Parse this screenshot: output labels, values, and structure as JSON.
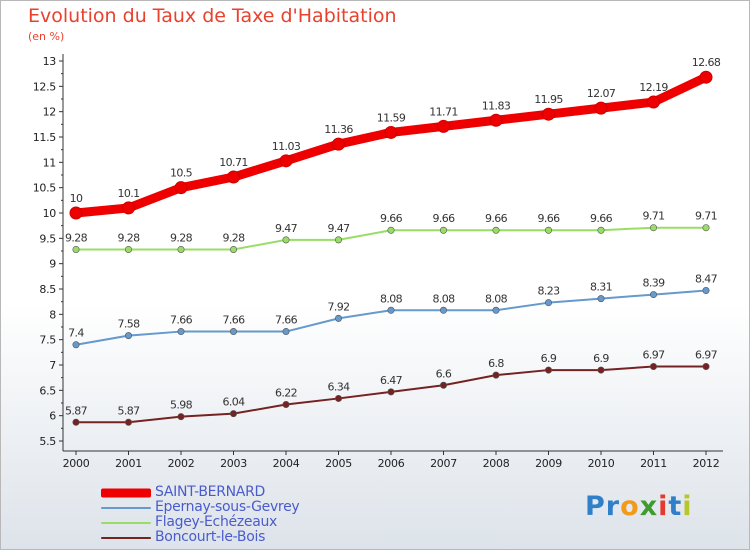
{
  "chart_data": {
    "type": "line",
    "title": "Evolution du Taux de Taxe d'Habitation",
    "subtitle": "(en %)",
    "x": [
      "2000",
      "2001",
      "2002",
      "2003",
      "2004",
      "2005",
      "2006",
      "2007",
      "2008",
      "2009",
      "2010",
      "2011",
      "2012"
    ],
    "ylim": [
      5.5,
      13
    ],
    "yticks": [
      "5.5",
      "6",
      "6.5",
      "7",
      "7.5",
      "8",
      "8.5",
      "9",
      "9.5",
      "10",
      "10.5",
      "11",
      "11.5",
      "12",
      "12.5",
      "13"
    ],
    "grid": false,
    "legend_position": "bottom-left",
    "series": [
      {
        "name": "SAINT-BERNARD",
        "color": "#ee0000",
        "values": [
          10,
          10.1,
          10.5,
          10.71,
          11.03,
          11.36,
          11.59,
          11.71,
          11.83,
          11.95,
          12.07,
          12.19,
          12.68
        ],
        "labels": [
          "10",
          "10.1",
          "10.5",
          "10.71",
          "11.03",
          "11.36",
          "11.59",
          "11.71",
          "11.83",
          "11.95",
          "12.07",
          "12.19",
          "12.68"
        ]
      },
      {
        "name": "Epernay-sous-Gevrey",
        "color": "#6699cc",
        "values": [
          7.4,
          7.58,
          7.66,
          7.66,
          7.66,
          7.92,
          8.08,
          8.08,
          8.08,
          8.23,
          8.31,
          8.39,
          8.47
        ],
        "labels": [
          "7.4",
          "7.58",
          "7.66",
          "7.66",
          "7.66",
          "7.92",
          "8.08",
          "8.08",
          "8.08",
          "8.23",
          "8.31",
          "8.39",
          "8.47"
        ]
      },
      {
        "name": "Flagey-Echézeaux",
        "color": "#99dd66",
        "values": [
          9.28,
          9.28,
          9.28,
          9.28,
          9.47,
          9.47,
          9.66,
          9.66,
          9.66,
          9.66,
          9.66,
          9.71,
          9.71
        ],
        "labels": [
          "9.28",
          "9.28",
          "9.28",
          "9.28",
          "9.47",
          "9.47",
          "9.66",
          "9.66",
          "9.66",
          "9.66",
          "9.66",
          "9.71",
          "9.71"
        ]
      },
      {
        "name": "Boncourt-le-Bois",
        "color": "#772222",
        "values": [
          5.87,
          5.87,
          5.98,
          6.04,
          6.22,
          6.34,
          6.47,
          6.6,
          6.8,
          6.9,
          6.9,
          6.97,
          6.97
        ],
        "labels": [
          "5.87",
          "5.87",
          "5.98",
          "6.04",
          "6.22",
          "6.34",
          "6.47",
          "6.6",
          "6.8",
          "6.9",
          "6.9",
          "6.97",
          "6.97"
        ]
      }
    ]
  },
  "logo": {
    "text": "Proxiti",
    "letters": [
      {
        "ch": "P",
        "color": "#2f7fc9"
      },
      {
        "ch": "r",
        "color": "#2f7fc9"
      },
      {
        "ch": "o",
        "color": "#f29a1a"
      },
      {
        "ch": "x",
        "color": "#3f9b2f"
      },
      {
        "ch": "i",
        "color": "#e5392d"
      },
      {
        "ch": "t",
        "color": "#2f7fc9"
      },
      {
        "ch": "i",
        "color": "#b9c62a"
      }
    ]
  }
}
